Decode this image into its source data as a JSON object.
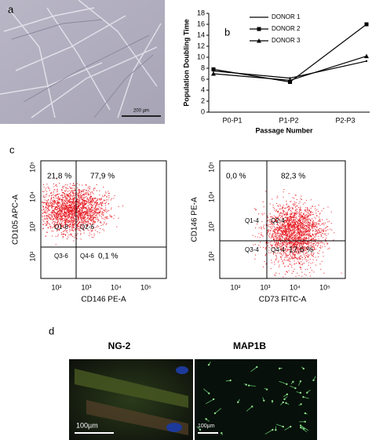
{
  "panel_labels": [
    "a",
    "b",
    "c",
    "d"
  ],
  "panel_a": {
    "scale_bar": "200 µm"
  },
  "chart_data": {
    "type": "line",
    "y_label": "Population Doubling Time",
    "x_label": "Passage Number",
    "categories": [
      "P0-P1",
      "P1-P2",
      "P2-P3"
    ],
    "series": [
      {
        "name": "DONOR 1",
        "color": "#000000",
        "marker": "none",
        "values": [
          7.5,
          6.2,
          9.3
        ]
      },
      {
        "name": "DONOR 2",
        "color": "#000000",
        "marker": "square",
        "values": [
          7.8,
          5.5,
          16
        ]
      },
      {
        "name": "DONOR 3",
        "color": "#000000",
        "marker": "triangle",
        "values": [
          7.0,
          5.8,
          10.2
        ]
      }
    ],
    "ylim": [
      0,
      18
    ],
    "yticks": [
      0,
      2,
      4,
      6,
      8,
      10,
      12,
      14,
      16,
      18
    ],
    "grid": false
  },
  "panel_c": [
    {
      "x_label": "CD146 PE-A",
      "y_label": "CD105 APC-A",
      "x_ticks": [
        "10²",
        "10³",
        "10⁴",
        "10⁵"
      ],
      "y_ticks": [
        "10²",
        "10³",
        "10⁴",
        "10⁵"
      ],
      "gates": [
        "Q1-6",
        "Q2-6",
        "Q3-6",
        "Q4-6"
      ],
      "percentages": {
        "upper_left": "21,8 %",
        "upper_right": "77,9 %",
        "lower_right": "0,1 %"
      }
    },
    {
      "x_label": "CD73 FITC-A",
      "y_label": "CD146 PE-A",
      "x_ticks": [
        "10²",
        "10³",
        "10⁴",
        "10⁵"
      ],
      "y_ticks": [
        "10²",
        "10³",
        "10⁴",
        "10⁵"
      ],
      "gates": [
        "Q1-4",
        "Q2-4",
        "Q3-4",
        "Q4-4"
      ],
      "percentages": {
        "upper_left": "0,0 %",
        "upper_right": "82,3 %",
        "lower_right": "17,6 %"
      }
    }
  ],
  "panel_d": {
    "titles": [
      "NG-2",
      "MAP1B"
    ],
    "scale_bars": [
      "100µm",
      "100µm"
    ]
  }
}
